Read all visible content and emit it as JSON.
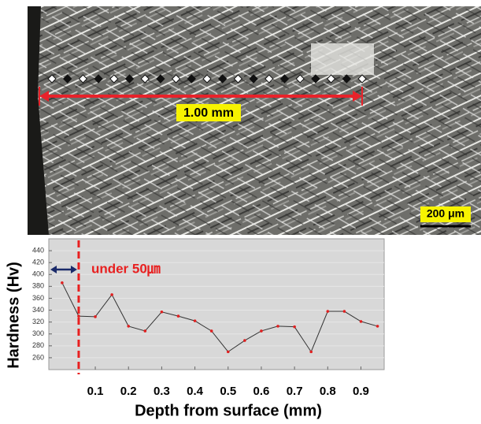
{
  "micrograph": {
    "length_label": "1.00 mm",
    "scale_label": "200 μm"
  },
  "chart_data": {
    "type": "line",
    "y_label": "Hardness (Hv)",
    "x_label": "Depth from surface (mm)",
    "x": [
      0,
      0.05,
      0.1,
      0.15,
      0.2,
      0.25,
      0.3,
      0.35,
      0.4,
      0.45,
      0.5,
      0.55,
      0.6,
      0.65,
      0.7,
      0.75,
      0.8,
      0.85,
      0.9,
      0.95
    ],
    "values": [
      386,
      330,
      329,
      366,
      313,
      305,
      337,
      330,
      322,
      305,
      270,
      289,
      305,
      313,
      312,
      270,
      338,
      338,
      321,
      313
    ],
    "color": "#e02020",
    "line_color": "#333333",
    "xlim": [
      -0.04,
      0.97
    ],
    "ylim": [
      240,
      460
    ],
    "xticks": [
      0.1,
      0.2,
      0.3,
      0.4,
      0.5,
      0.6,
      0.7,
      0.8,
      0.9
    ],
    "yticks": [
      260,
      280,
      300,
      320,
      340,
      360,
      380,
      400,
      420,
      440
    ],
    "grid": true,
    "annotation": {
      "text": "under 50㎛",
      "x": 0.05,
      "color": "#e82020"
    }
  }
}
